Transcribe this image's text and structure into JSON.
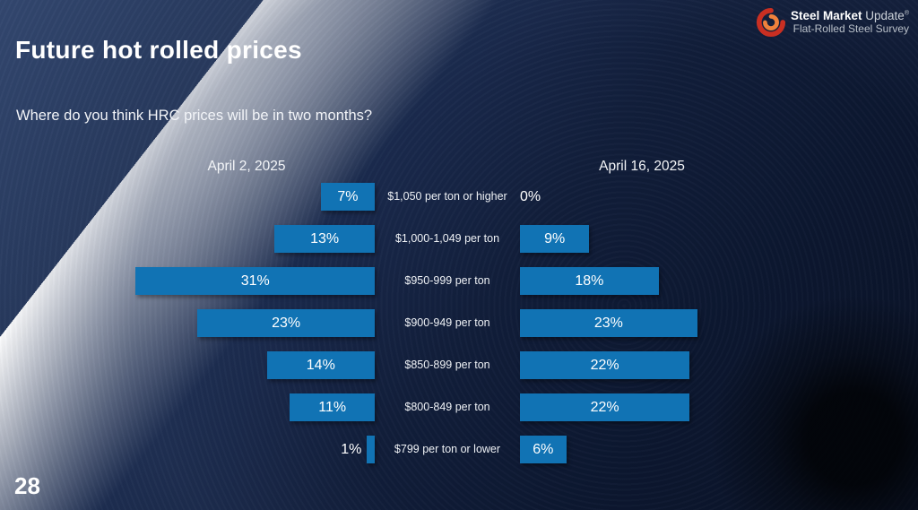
{
  "slide": {
    "title": "Future hot rolled prices",
    "question": "Where do you think HRC prices will be in two months?",
    "page_number": "28"
  },
  "brand": {
    "name_bold": "Steel Market",
    "name_light": " Update",
    "reg_mark": "®",
    "subtitle": "Flat-Rolled Steel Survey"
  },
  "chart_data": {
    "type": "bar",
    "variant": "butterfly",
    "left_title": "April 2, 2025",
    "right_title": "April 16, 2025",
    "categories": [
      "$1,050 per ton or higher",
      "$1,000-1,049 per ton",
      "$950-999 per ton",
      "$900-949 per ton",
      "$850-899 per ton",
      "$800-849 per ton",
      "$799 per ton or lower"
    ],
    "series": [
      {
        "name": "April 2, 2025",
        "values": [
          7,
          13,
          31,
          23,
          14,
          11,
          1
        ]
      },
      {
        "name": "April 16, 2025",
        "values": [
          0,
          9,
          18,
          23,
          22,
          22,
          6
        ]
      }
    ],
    "value_suffix": "%",
    "value_range": [
      0,
      31
    ],
    "bar_color": "#1173b4",
    "legend_position": "column-headers",
    "grid": false
  }
}
